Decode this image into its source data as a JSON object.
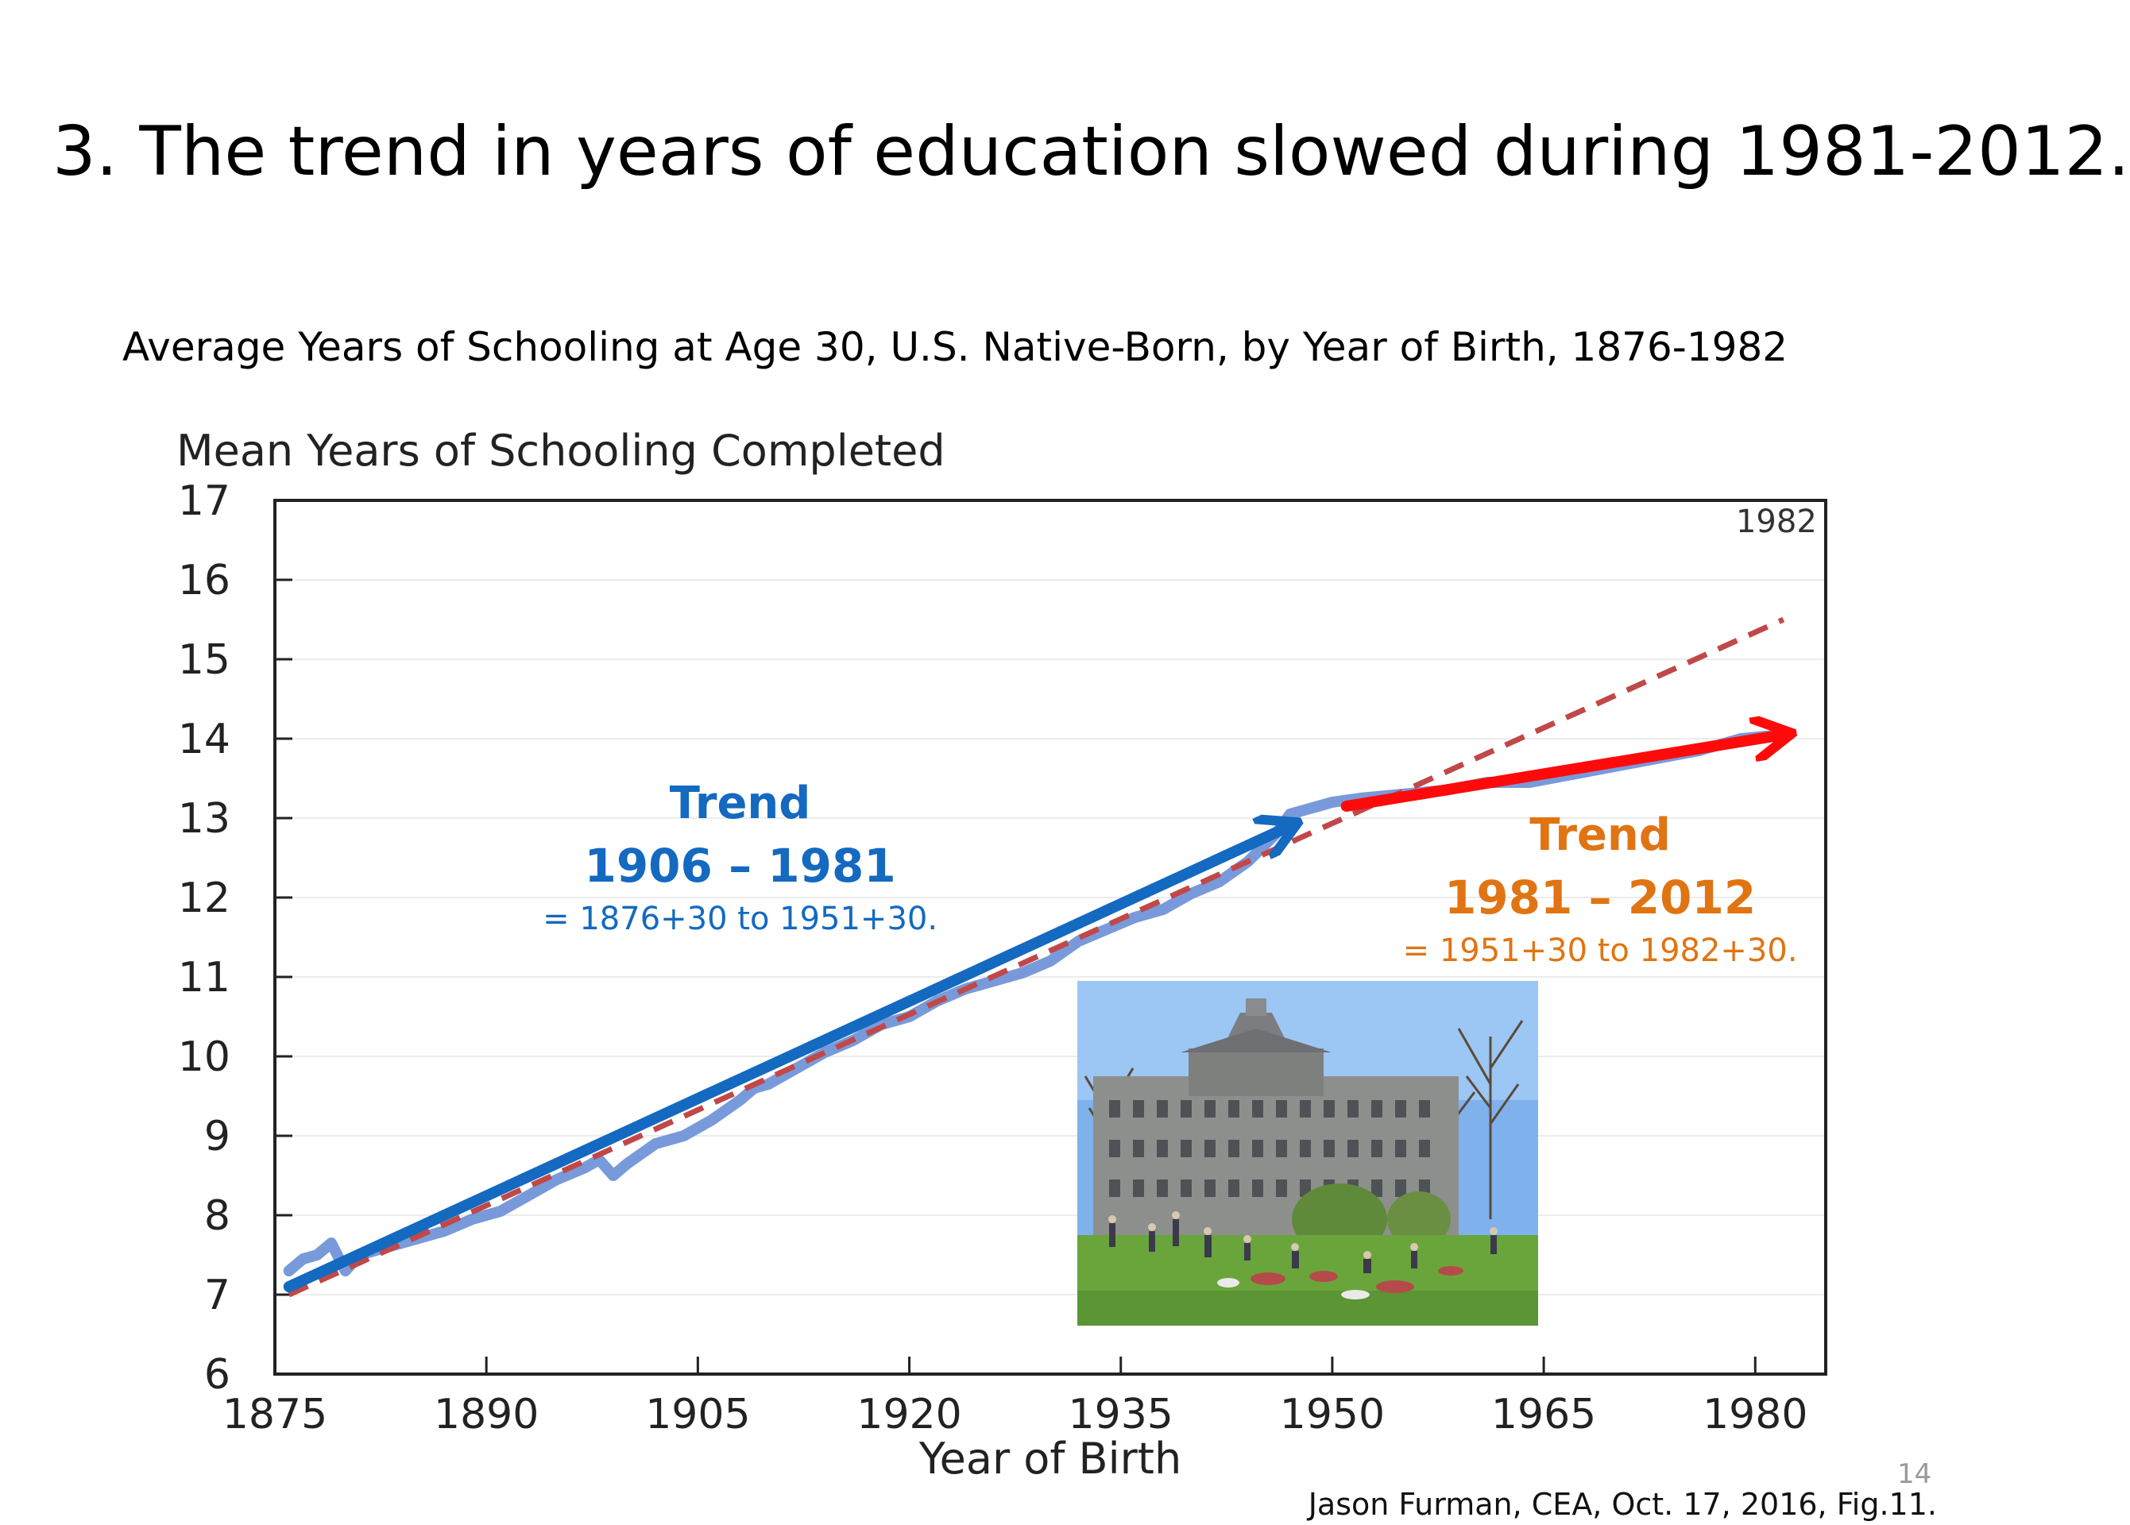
{
  "slide": {
    "title": "3. The trend in years of education slowed during 1981-2012.",
    "subtitle": "Average Years of Schooling at Age 30, U.S. Native-Born, by Year of Birth, 1876-1982",
    "page_number": "14",
    "credit": "Jason Furman, CEA, Oct. 17, 2016, Fig.11."
  },
  "photo": {
    "icon": "campus-photo-icon"
  },
  "chart_data": {
    "type": "line",
    "title": "",
    "xlabel": "Year of Birth",
    "ylabel": "Mean Years of Schooling Completed",
    "xlim": [
      1875,
      1985
    ],
    "ylim": [
      6,
      17
    ],
    "x_ticks": [
      1875,
      1890,
      1905,
      1920,
      1935,
      1950,
      1965,
      1980
    ],
    "y_ticks": [
      6,
      7,
      8,
      9,
      10,
      11,
      12,
      13,
      14,
      15,
      16,
      17
    ],
    "grid": true,
    "series": [
      {
        "color": "#6a8fd6",
        "points": [
          [
            1876,
            7.3
          ],
          [
            1877,
            7.45
          ],
          [
            1878,
            7.5
          ],
          [
            1879,
            7.65
          ],
          [
            1880,
            7.3
          ],
          [
            1881,
            7.5
          ],
          [
            1883,
            7.6
          ],
          [
            1885,
            7.7
          ],
          [
            1887,
            7.8
          ],
          [
            1889,
            7.95
          ],
          [
            1891,
            8.05
          ],
          [
            1893,
            8.25
          ],
          [
            1895,
            8.45
          ],
          [
            1897,
            8.6
          ],
          [
            1898,
            8.7
          ],
          [
            1899,
            8.5
          ],
          [
            1900,
            8.65
          ],
          [
            1902,
            8.9
          ],
          [
            1904,
            9.0
          ],
          [
            1906,
            9.2
          ],
          [
            1908,
            9.45
          ],
          [
            1909,
            9.6
          ],
          [
            1910,
            9.65
          ],
          [
            1912,
            9.85
          ],
          [
            1914,
            10.05
          ],
          [
            1916,
            10.2
          ],
          [
            1918,
            10.4
          ],
          [
            1920,
            10.5
          ],
          [
            1922,
            10.7
          ],
          [
            1924,
            10.85
          ],
          [
            1926,
            10.95
          ],
          [
            1928,
            11.05
          ],
          [
            1930,
            11.2
          ],
          [
            1932,
            11.45
          ],
          [
            1934,
            11.6
          ],
          [
            1936,
            11.75
          ],
          [
            1938,
            11.85
          ],
          [
            1940,
            12.05
          ],
          [
            1942,
            12.2
          ],
          [
            1944,
            12.45
          ],
          [
            1946,
            12.8
          ],
          [
            1947,
            13.05
          ],
          [
            1948,
            13.1
          ],
          [
            1950,
            13.2
          ],
          [
            1952,
            13.25
          ],
          [
            1955,
            13.3
          ],
          [
            1958,
            13.35
          ],
          [
            1961,
            13.45
          ],
          [
            1964,
            13.45
          ],
          [
            1967,
            13.55
          ],
          [
            1970,
            13.65
          ],
          [
            1973,
            13.75
          ],
          [
            1976,
            13.85
          ],
          [
            1979,
            14.0
          ],
          [
            1982,
            14.05
          ]
        ]
      }
    ],
    "trend_lines": [
      {
        "color": "#c04848",
        "style": "dashed",
        "points": [
          [
            1876,
            7.0
          ],
          [
            1982,
            15.5
          ]
        ]
      },
      {
        "color": "#1469c0",
        "style": "arrow",
        "points": [
          [
            1876,
            7.1
          ],
          [
            1947,
            12.9
          ]
        ]
      },
      {
        "color": "#ff0a0a",
        "style": "arrow",
        "points": [
          [
            1951,
            13.15
          ],
          [
            1982,
            14.05
          ]
        ]
      }
    ],
    "annotations": [
      {
        "id": "year_end",
        "text": "1982",
        "x": 1981.5,
        "y": 16.6,
        "color": "#333333"
      },
      {
        "id": "trend1_head",
        "text": "Trend",
        "x": 1908,
        "y": 13.0,
        "color": "#1469c0"
      },
      {
        "id": "trend1_years",
        "text": "1906 – 1981",
        "x": 1908,
        "y": 12.2,
        "color": "#1469c0"
      },
      {
        "id": "trend1_sub",
        "text": "= 1876+30 to 1951+30.",
        "x": 1908,
        "y": 11.6,
        "color": "#1469c0"
      },
      {
        "id": "trend2_head",
        "text": "Trend",
        "x": 1969,
        "y": 12.6,
        "color": "#e07413"
      },
      {
        "id": "trend2_years",
        "text": "1981 – 2012",
        "x": 1969,
        "y": 11.8,
        "color": "#e07413"
      },
      {
        "id": "trend2_sub",
        "text": "= 1951+30 to 1982+30.",
        "x": 1969,
        "y": 11.2,
        "color": "#e07413"
      }
    ]
  }
}
